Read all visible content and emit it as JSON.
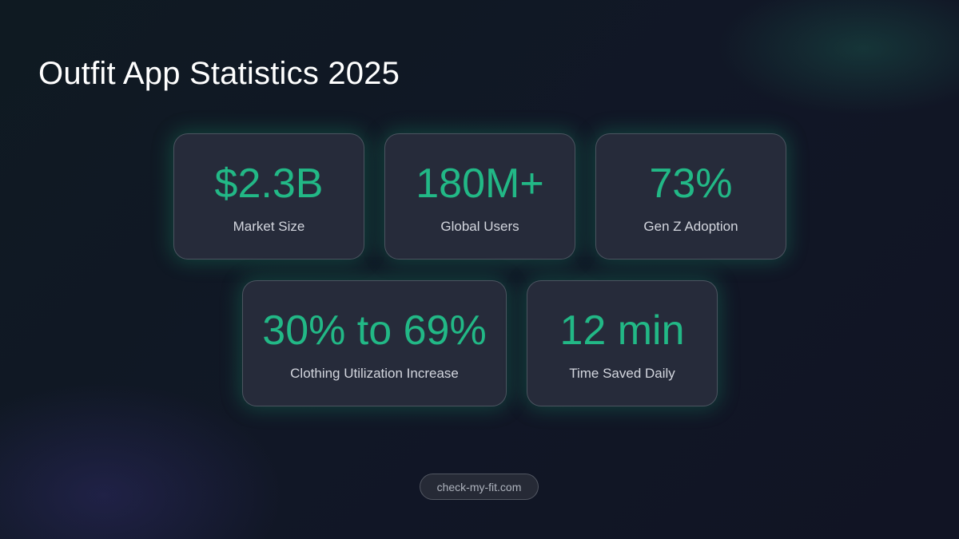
{
  "title": "Outfit App Statistics 2025",
  "accent_color": "#22b886",
  "stats": [
    {
      "value": "$2.3B",
      "label": "Market Size"
    },
    {
      "value": "180M+",
      "label": "Global Users"
    },
    {
      "value": "73%",
      "label": "Gen Z Adoption"
    },
    {
      "value": "30% to 69%",
      "label": "Clothing Utilization Increase"
    },
    {
      "value": "12 min",
      "label": "Time Saved Daily"
    }
  ],
  "footer": {
    "link": "check-my-fit.com"
  }
}
